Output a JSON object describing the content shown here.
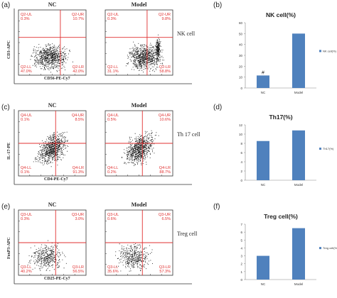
{
  "panels": {
    "a": "(a)",
    "b": "(b)",
    "c": "(c)",
    "d": "(d)",
    "e": "(e)",
    "f": "(f)"
  },
  "flow": [
    {
      "conditions": [
        "NC",
        "Model"
      ],
      "cell_label": "NK cell",
      "y_axis": "CD3-APC",
      "x_axis": "CD56-PE-Cy7",
      "quadrants": [
        {
          "ul": "Q2-UL",
          "ul_v": "0.3%",
          "ur": "Q2-UR",
          "ur_v": "10.7%",
          "ll": "Q2-LL",
          "ll_v": "47.0%",
          "lr": "Q2-LR",
          "lr_v": "42.0%"
        },
        {
          "ul": "Q2-UL",
          "ul_v": "0.3%",
          "ur": "Q2-UR",
          "ur_v": "9.8%",
          "ll": "Q2-LL",
          "ll_v": "31.1%",
          "lr": "Q2-LR",
          "lr_v": "58.8%"
        }
      ]
    },
    {
      "conditions": [
        "NC",
        "Model"
      ],
      "cell_label": "Th 17 cell",
      "y_axis": "IL-17-PE",
      "x_axis": "CD4-PE-Cy7",
      "quadrants": [
        {
          "ul": "Q4-UL",
          "ul_v": "0.1%",
          "ur": "Q4-UR",
          "ur_v": "8.5%",
          "ll": "Q4-LL",
          "ll_v": "0.1%",
          "lr": "Q4-LR",
          "lr_v": "91.3%"
        },
        {
          "ul": "Q4-UL",
          "ul_v": "0.5%",
          "ur": "Q4-UR",
          "ur_v": "10.6%",
          "ll": "Q4-LL",
          "ll_v": "0.2%",
          "lr": "Q4-LR",
          "lr_v": "88.7%"
        }
      ]
    },
    {
      "conditions": [
        "NC",
        "Model"
      ],
      "cell_label": "Treg cell",
      "y_axis": "FoxP3-APC",
      "x_axis": "CD25-PE-Cy7",
      "quadrants": [
        {
          "ul": "Q3-UL",
          "ul_v": "0.3%",
          "ur": "Q3-UR",
          "ur_v": "3.0%",
          "ll": "Q3-LL",
          "ll_v": "40.2%",
          "lr": "Q3-LR",
          "lr_v": "56.5%"
        },
        {
          "ul": "Q3-UL",
          "ul_v": "0.6%",
          "ur": "Q3-UR",
          "ur_v": "6.5%",
          "ll": "Q3-LL",
          "ll_v": "35.6%",
          "lr": "Q3-LR",
          "lr_v": "57.3%"
        }
      ]
    }
  ],
  "chart_data": [
    {
      "type": "bar",
      "title": "NK cell(%)",
      "categories": [
        "NC",
        "Model"
      ],
      "series": [
        {
          "name": "NK cell(%)",
          "values": [
            11.5,
            50
          ]
        }
      ],
      "ylim": [
        0,
        60
      ],
      "yticks": [
        0,
        10,
        20,
        30,
        40,
        50,
        60
      ],
      "annotation": "#",
      "legend": "right",
      "color": "#4f81bd"
    },
    {
      "type": "bar",
      "title": "Th17(%)",
      "categories": [
        "NC",
        "Model"
      ],
      "series": [
        {
          "name": "Th17(%)",
          "values": [
            8.5,
            10.8
          ]
        }
      ],
      "ylim": [
        0,
        12
      ],
      "yticks": [
        0,
        2,
        4,
        6,
        8,
        10,
        12
      ],
      "legend": "right",
      "color": "#4f81bd"
    },
    {
      "type": "bar",
      "title": "Treg cell(%)",
      "categories": [
        "NC",
        "Model"
      ],
      "series": [
        {
          "name": "Treg cell(%)",
          "values": [
            3,
            6.5
          ]
        }
      ],
      "ylim": [
        0,
        7
      ],
      "yticks": [
        0,
        1,
        2,
        3,
        4,
        5,
        6,
        7
      ],
      "legend": "right",
      "color": "#4f81bd"
    }
  ]
}
